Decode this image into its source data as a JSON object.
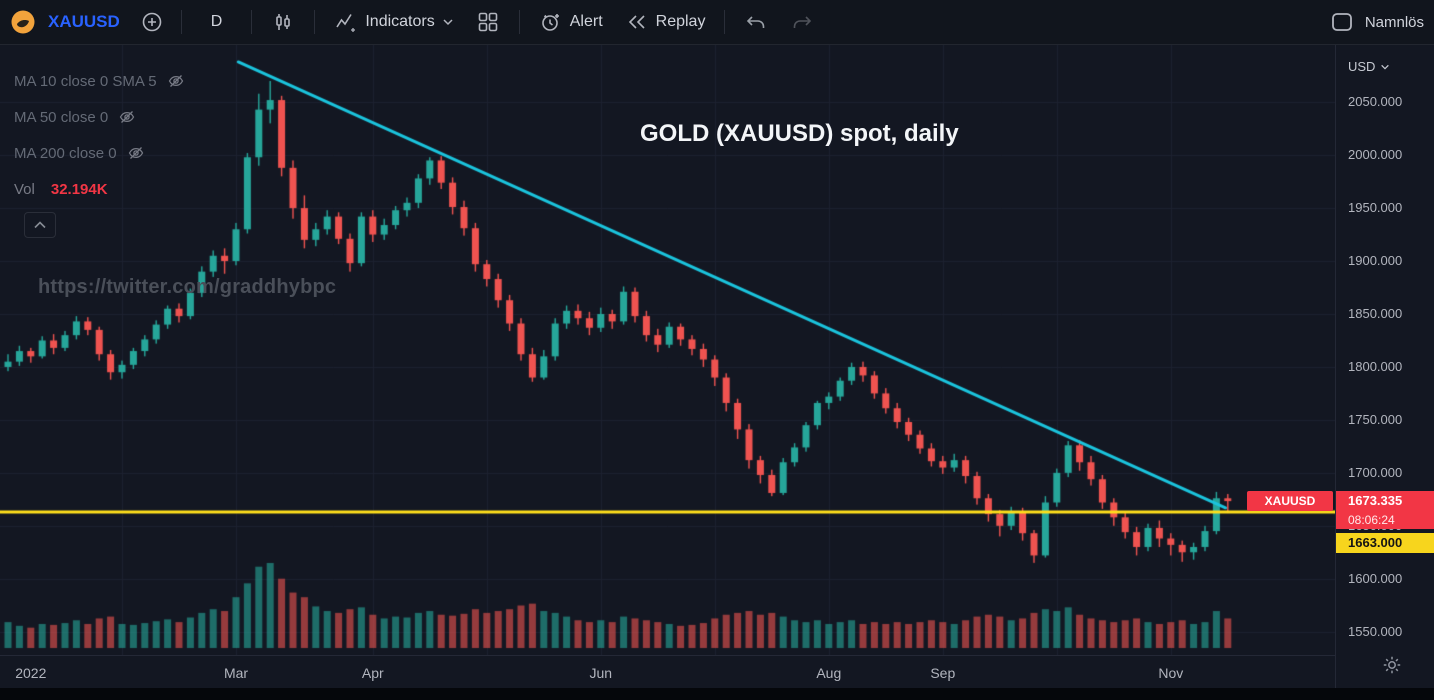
{
  "toolbar": {
    "symbol": "XAUUSD",
    "interval": "D",
    "indicators_label": "Indicators",
    "alert_label": "Alert",
    "replay_label": "Replay",
    "layout_name": "Namnlös"
  },
  "legend": {
    "ma10": "MA 10 close 0 SMA 5",
    "ma50": "MA 50 close 0",
    "ma200": "MA 200 close 0",
    "vol_label": "Vol",
    "vol_value": "32.194K"
  },
  "watermark": "https://twitter.com/graddhybpc",
  "annotation_title": "GOLD (XAUUSD) spot, daily",
  "price_axis": {
    "currency": "USD",
    "last_price": "1673.335",
    "countdown": "08:06:24",
    "symbol_tag": "XAUUSD",
    "level_label": "1663.000"
  },
  "chart_data": {
    "type": "candlestick",
    "symbol": "XAUUSD",
    "timeframe": "daily",
    "title": "GOLD (XAUUSD) spot, daily",
    "ylabel": "USD",
    "ylim": [
      1528,
      2104
    ],
    "grid": true,
    "price_ticks": [
      2050,
      2000,
      1950,
      1900,
      1850,
      1800,
      1750,
      1700,
      1650,
      1600,
      1550
    ],
    "last_price": 1673.335,
    "volume_current_label": "32.194K",
    "volume_unit": "K",
    "time_labels": [
      {
        "label": "2022",
        "index": 2
      },
      {
        "label": "Mar",
        "index": 20
      },
      {
        "label": "Apr",
        "index": 32
      },
      {
        "label": "Jun",
        "index": 52
      },
      {
        "label": "Aug",
        "index": 72
      },
      {
        "label": "Sep",
        "index": 82
      },
      {
        "label": "Nov",
        "index": 102
      }
    ],
    "month_grid_indices": [
      10,
      20,
      32,
      42,
      52,
      62,
      72,
      82,
      92,
      102
    ],
    "candles": [
      [
        1800,
        1812,
        1796,
        1805,
        28
      ],
      [
        1805,
        1820,
        1801,
        1815,
        24
      ],
      [
        1815,
        1818,
        1804,
        1810,
        22
      ],
      [
        1810,
        1829,
        1808,
        1825,
        26
      ],
      [
        1825,
        1831,
        1812,
        1818,
        25
      ],
      [
        1818,
        1834,
        1815,
        1830,
        27
      ],
      [
        1830,
        1848,
        1826,
        1843,
        30
      ],
      [
        1843,
        1847,
        1830,
        1835,
        26
      ],
      [
        1835,
        1838,
        1806,
        1812,
        32
      ],
      [
        1812,
        1816,
        1788,
        1795,
        34
      ],
      [
        1795,
        1806,
        1789,
        1802,
        26
      ],
      [
        1802,
        1818,
        1798,
        1815,
        25
      ],
      [
        1815,
        1830,
        1810,
        1826,
        27
      ],
      [
        1826,
        1844,
        1822,
        1840,
        29
      ],
      [
        1840,
        1858,
        1836,
        1855,
        31
      ],
      [
        1855,
        1860,
        1842,
        1848,
        28
      ],
      [
        1848,
        1874,
        1845,
        1870,
        33
      ],
      [
        1870,
        1895,
        1866,
        1890,
        38
      ],
      [
        1890,
        1910,
        1885,
        1905,
        42
      ],
      [
        1905,
        1912,
        1888,
        1900,
        40
      ],
      [
        1900,
        1936,
        1896,
        1930,
        55
      ],
      [
        1930,
        2002,
        1926,
        1998,
        70
      ],
      [
        1998,
        2058,
        1990,
        2043,
        88
      ],
      [
        2043,
        2070,
        2030,
        2052,
        92
      ],
      [
        2052,
        2056,
        1980,
        1988,
        75
      ],
      [
        1988,
        1995,
        1940,
        1950,
        60
      ],
      [
        1950,
        1962,
        1912,
        1920,
        55
      ],
      [
        1920,
        1936,
        1914,
        1930,
        45
      ],
      [
        1930,
        1948,
        1925,
        1942,
        40
      ],
      [
        1942,
        1946,
        1916,
        1921,
        38
      ],
      [
        1921,
        1926,
        1890,
        1898,
        42
      ],
      [
        1898,
        1946,
        1895,
        1942,
        44
      ],
      [
        1942,
        1948,
        1918,
        1925,
        36
      ],
      [
        1925,
        1940,
        1920,
        1934,
        32
      ],
      [
        1934,
        1952,
        1930,
        1948,
        34
      ],
      [
        1948,
        1960,
        1942,
        1955,
        33
      ],
      [
        1955,
        1982,
        1950,
        1978,
        38
      ],
      [
        1978,
        1998,
        1972,
        1995,
        40
      ],
      [
        1995,
        1999,
        1968,
        1974,
        36
      ],
      [
        1974,
        1979,
        1944,
        1951,
        35
      ],
      [
        1951,
        1957,
        1924,
        1931,
        37
      ],
      [
        1931,
        1936,
        1890,
        1897,
        42
      ],
      [
        1897,
        1901,
        1876,
        1883,
        38
      ],
      [
        1883,
        1888,
        1856,
        1863,
        40
      ],
      [
        1863,
        1868,
        1834,
        1841,
        42
      ],
      [
        1841,
        1846,
        1806,
        1812,
        46
      ],
      [
        1812,
        1818,
        1786,
        1790,
        48
      ],
      [
        1790,
        1816,
        1788,
        1810,
        40
      ],
      [
        1810,
        1846,
        1806,
        1841,
        38
      ],
      [
        1841,
        1858,
        1836,
        1853,
        34
      ],
      [
        1853,
        1859,
        1840,
        1846,
        30
      ],
      [
        1846,
        1852,
        1830,
        1837,
        28
      ],
      [
        1837,
        1856,
        1833,
        1850,
        30
      ],
      [
        1850,
        1854,
        1836,
        1843,
        28
      ],
      [
        1843,
        1876,
        1840,
        1871,
        34
      ],
      [
        1871,
        1875,
        1842,
        1848,
        32
      ],
      [
        1848,
        1853,
        1824,
        1830,
        30
      ],
      [
        1830,
        1836,
        1814,
        1821,
        28
      ],
      [
        1821,
        1842,
        1818,
        1838,
        26
      ],
      [
        1838,
        1841,
        1820,
        1826,
        24
      ],
      [
        1826,
        1830,
        1811,
        1817,
        25
      ],
      [
        1817,
        1822,
        1800,
        1807,
        27
      ],
      [
        1807,
        1811,
        1782,
        1790,
        32
      ],
      [
        1790,
        1794,
        1758,
        1766,
        36
      ],
      [
        1766,
        1770,
        1732,
        1741,
        38
      ],
      [
        1741,
        1746,
        1704,
        1712,
        40
      ],
      [
        1712,
        1716,
        1690,
        1698,
        36
      ],
      [
        1698,
        1703,
        1678,
        1681,
        38
      ],
      [
        1681,
        1714,
        1679,
        1710,
        34
      ],
      [
        1710,
        1728,
        1706,
        1724,
        30
      ],
      [
        1724,
        1748,
        1720,
        1745,
        28
      ],
      [
        1745,
        1768,
        1741,
        1766,
        30
      ],
      [
        1766,
        1776,
        1760,
        1772,
        26
      ],
      [
        1772,
        1790,
        1768,
        1787,
        28
      ],
      [
        1787,
        1804,
        1783,
        1800,
        30
      ],
      [
        1800,
        1805,
        1786,
        1792,
        26
      ],
      [
        1792,
        1796,
        1770,
        1775,
        28
      ],
      [
        1775,
        1780,
        1756,
        1761,
        26
      ],
      [
        1761,
        1766,
        1742,
        1748,
        28
      ],
      [
        1748,
        1752,
        1730,
        1736,
        26
      ],
      [
        1736,
        1740,
        1718,
        1723,
        28
      ],
      [
        1723,
        1728,
        1706,
        1711,
        30
      ],
      [
        1711,
        1716,
        1699,
        1705,
        28
      ],
      [
        1705,
        1718,
        1701,
        1712,
        26
      ],
      [
        1712,
        1716,
        1690,
        1697,
        30
      ],
      [
        1697,
        1701,
        1670,
        1676,
        34
      ],
      [
        1676,
        1680,
        1654,
        1661,
        36
      ],
      [
        1661,
        1665,
        1640,
        1650,
        34
      ],
      [
        1650,
        1668,
        1646,
        1664,
        30
      ],
      [
        1664,
        1667,
        1636,
        1643,
        32
      ],
      [
        1643,
        1646,
        1615,
        1622,
        38
      ],
      [
        1622,
        1678,
        1620,
        1672,
        42
      ],
      [
        1672,
        1704,
        1668,
        1700,
        40
      ],
      [
        1700,
        1730,
        1696,
        1726,
        44
      ],
      [
        1726,
        1731,
        1702,
        1710,
        36
      ],
      [
        1710,
        1716,
        1688,
        1694,
        32
      ],
      [
        1694,
        1698,
        1666,
        1672,
        30
      ],
      [
        1672,
        1676,
        1650,
        1658,
        28
      ],
      [
        1658,
        1662,
        1638,
        1644,
        30
      ],
      [
        1644,
        1649,
        1622,
        1630,
        32
      ],
      [
        1630,
        1652,
        1626,
        1648,
        28
      ],
      [
        1648,
        1655,
        1630,
        1638,
        26
      ],
      [
        1638,
        1643,
        1622,
        1632,
        28
      ],
      [
        1632,
        1636,
        1616,
        1625,
        30
      ],
      [
        1625,
        1634,
        1618,
        1630,
        26
      ],
      [
        1630,
        1650,
        1626,
        1645,
        28
      ],
      [
        1645,
        1682,
        1642,
        1676,
        40
      ],
      [
        1676,
        1680,
        1662,
        1673.335,
        32
      ]
    ],
    "overlays": {
      "trendline": {
        "color": "#1bc4dd",
        "from": {
          "index": 20.2,
          "price": 2088
        },
        "to": {
          "index": 106.8,
          "price": 1667
        }
      },
      "support_line": {
        "color": "#ffdf1b",
        "price": 1663,
        "label": "1663.000"
      }
    },
    "colors": {
      "up": "#26a69a",
      "down": "#ef5350",
      "grid": "#1c2130",
      "bg": "#131722"
    }
  }
}
